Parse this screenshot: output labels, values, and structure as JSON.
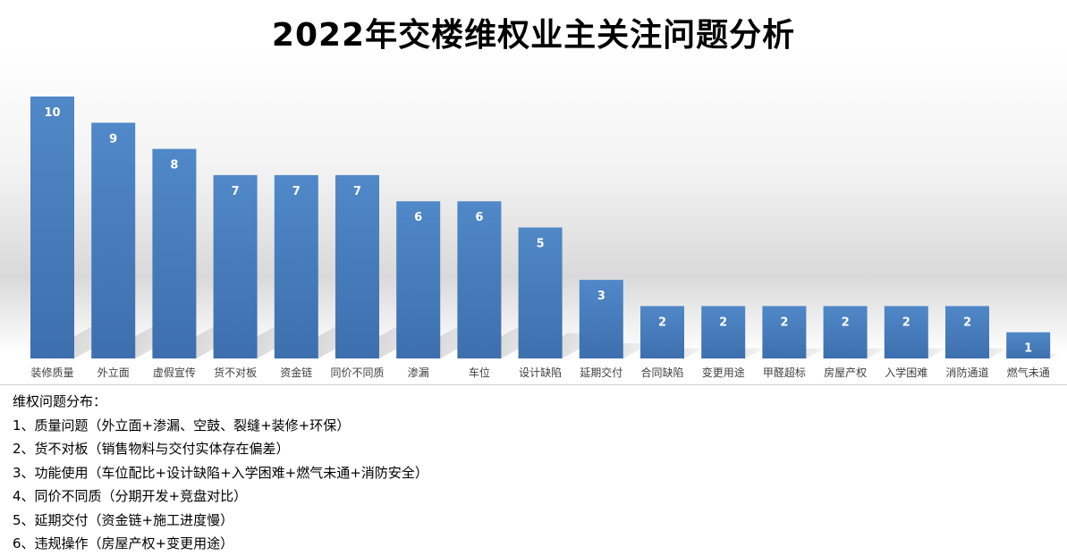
{
  "chart_data": {
    "type": "bar",
    "title": "2022年交楼维权业主关注问题分析",
    "categories": [
      "装修质量",
      "外立面",
      "虚假宣传",
      "货不对板",
      "资金链",
      "同价不同质",
      "渗漏",
      "车位",
      "设计缺陷",
      "延期交付",
      "合同缺陷",
      "变更用途",
      "甲醛超标",
      "房屋产权",
      "入学困难",
      "消防通道",
      "燃气未通"
    ],
    "values": [
      10,
      9,
      8,
      7,
      7,
      7,
      6,
      6,
      5,
      3,
      2,
      2,
      2,
      2,
      2,
      2,
      1
    ],
    "ylim": [
      0,
      10
    ],
    "xlabel": "",
    "ylabel": "",
    "grid": false,
    "legend": "none",
    "bar_color": "#4a7ebb",
    "label_color": "#ffffff"
  },
  "notes": {
    "heading": "维权问题分布：",
    "items": [
      "1、质量问题（外立面+渗漏、空鼓、裂缝+装修+环保）",
      "2、货不对板（销售物料与交付实体存在偏差）",
      "3、功能使用（车位配比+设计缺陷+入学困难+燃气未通+消防安全）",
      "4、同价不同质（分期开发+竞盘对比）",
      "5、延期交付（资金链+施工进度慢）",
      "6、违规操作（房屋产权+变更用途）"
    ]
  }
}
